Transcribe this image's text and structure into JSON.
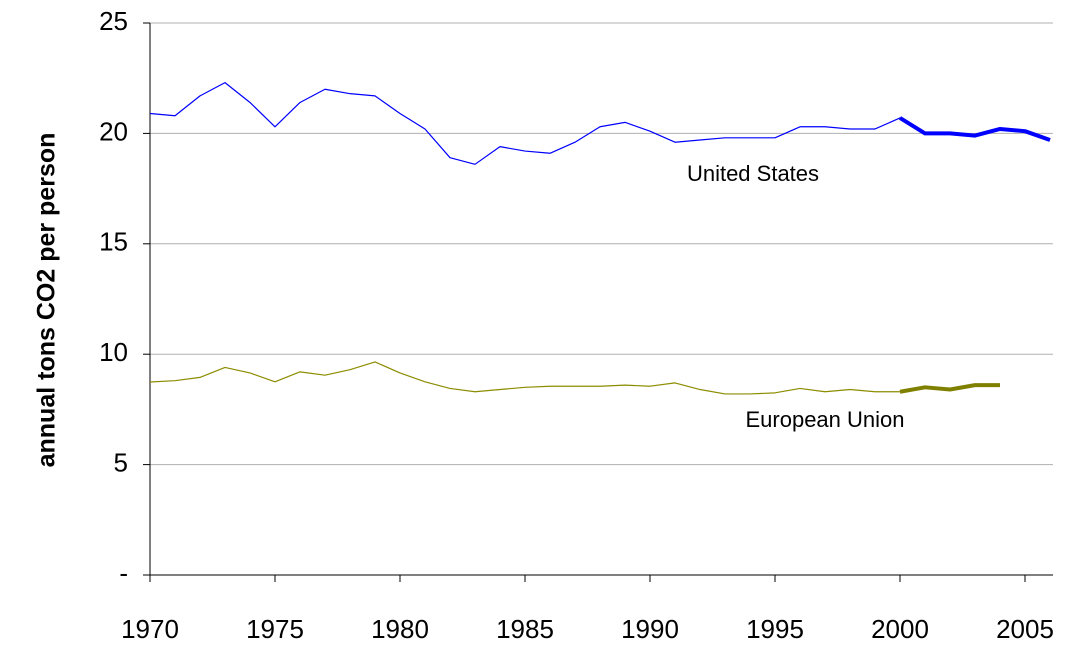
{
  "chart_data": {
    "type": "line",
    "y_label": "annual tons CO2 per person",
    "xlim": [
      1970,
      2006
    ],
    "xticks": [
      1970,
      1975,
      1980,
      1985,
      1990,
      1995,
      2000,
      2005
    ],
    "ylim": [
      0,
      25
    ],
    "yticks": [
      {
        "value": 0,
        "label": "-"
      },
      5,
      10,
      15,
      20,
      25
    ],
    "grid": true,
    "series": [
      {
        "name": "United States",
        "color": "#0000ff",
        "label_color": "#000080",
        "line_width": 1.2,
        "x": [
          1970,
          1971,
          1972,
          1973,
          1974,
          1975,
          1976,
          1977,
          1978,
          1979,
          1980,
          1981,
          1982,
          1983,
          1984,
          1985,
          1986,
          1987,
          1988,
          1989,
          1990,
          1991,
          1992,
          1993,
          1994,
          1995,
          1996,
          1997,
          1998,
          1999,
          2000,
          2001,
          2002,
          2003,
          2004,
          2005,
          2006
        ],
        "values": [
          20.9,
          20.8,
          21.7,
          22.3,
          21.4,
          20.3,
          21.4,
          22.0,
          21.8,
          21.7,
          20.9,
          20.2,
          18.9,
          18.6,
          19.4,
          19.2,
          19.1,
          19.6,
          20.3,
          20.5,
          20.1,
          19.6,
          19.7,
          19.8,
          19.8,
          19.8,
          20.3,
          20.3,
          20.2,
          20.2,
          20.7,
          20.0,
          20.0,
          19.9,
          20.2,
          20.1,
          19.7
        ]
      },
      {
        "name": "European Union",
        "color": "#8c8c00",
        "label_color": "#336600",
        "line_width": 1.2,
        "x": [
          1970,
          1971,
          1972,
          1973,
          1974,
          1975,
          1976,
          1977,
          1978,
          1979,
          1980,
          1981,
          1982,
          1983,
          1984,
          1985,
          1986,
          1987,
          1988,
          1989,
          1990,
          1991,
          1992,
          1993,
          1994,
          1995,
          1996,
          1997,
          1998,
          1999,
          2000
        ],
        "values": [
          8.74,
          8.8,
          8.95,
          9.4,
          9.15,
          8.75,
          9.2,
          9.05,
          9.3,
          9.65,
          9.15,
          8.75,
          8.45,
          8.3,
          8.4,
          8.5,
          8.55,
          8.55,
          8.55,
          8.6,
          8.55,
          8.7,
          8.4,
          8.2,
          8.2,
          8.25,
          8.45,
          8.3,
          8.4,
          8.3,
          8.3
        ]
      },
      {
        "color": "#0000ff",
        "line_width": 4,
        "x": [
          2000,
          2001,
          2002,
          2003,
          2004,
          2005,
          2006
        ],
        "values": [
          20.7,
          20.0,
          20.0,
          19.9,
          20.2,
          20.1,
          19.7
        ]
      },
      {
        "color": "#808000",
        "line_width": 4,
        "x": [
          2000,
          2001,
          2002,
          2003,
          2004
        ],
        "values": [
          8.3,
          8.5,
          8.4,
          8.6,
          8.6
        ]
      }
    ]
  }
}
